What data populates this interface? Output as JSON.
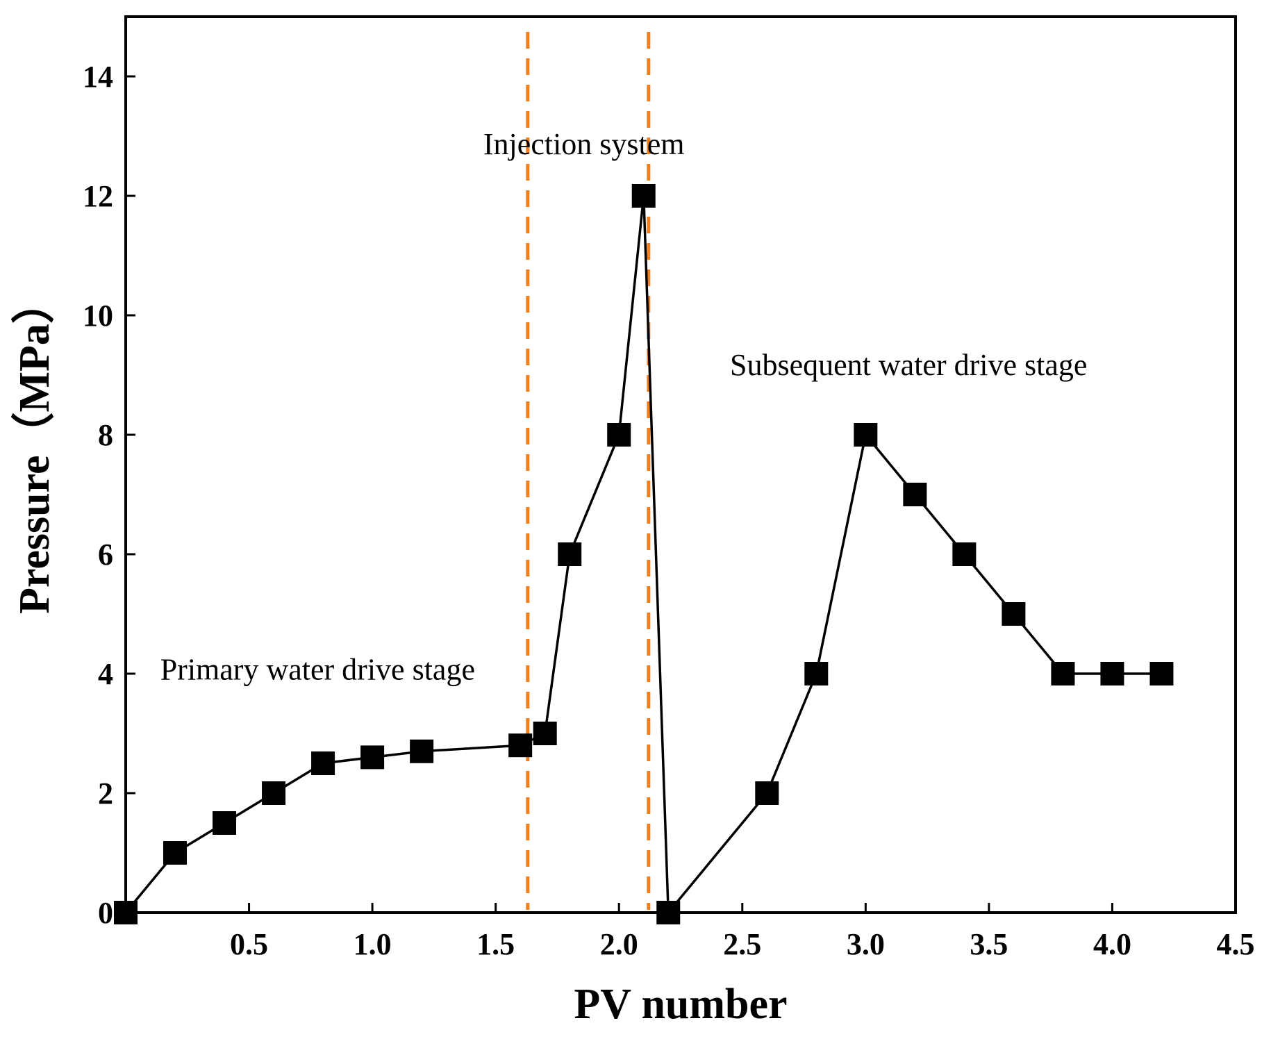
{
  "chart_data": {
    "type": "line",
    "title": "",
    "xlabel": "PV number",
    "ylabel": "Pressure（MPa）",
    "xlim": [
      0,
      4.5
    ],
    "ylim": [
      0,
      15
    ],
    "xticks": [
      0.5,
      1.0,
      1.5,
      2.0,
      2.5,
      3.0,
      3.5,
      4.0,
      4.5
    ],
    "xtick_labels": [
      "0.5",
      "1.0",
      "1.5",
      "2.0",
      "2.5",
      "3.0",
      "3.5",
      "4.0",
      "4.5"
    ],
    "yticks": [
      0,
      2,
      4,
      6,
      8,
      10,
      12,
      14
    ],
    "ytick_labels": [
      "0",
      "2",
      "4",
      "6",
      "8",
      "10",
      "12",
      "14"
    ],
    "grid": false,
    "series": [
      {
        "name": "Pressure",
        "color": "#000000",
        "marker": "square",
        "x": [
          0,
          0.2,
          0.4,
          0.6,
          0.8,
          1.0,
          1.2,
          1.6,
          1.7,
          1.8,
          2.0,
          2.1,
          2.2,
          2.6,
          2.8,
          3.0,
          3.2,
          3.4,
          3.6,
          3.8,
          4.0,
          4.2
        ],
        "y": [
          0,
          1,
          1.5,
          2,
          2.5,
          2.6,
          2.7,
          2.8,
          3,
          6,
          8,
          12,
          0,
          2,
          4,
          8,
          7,
          6,
          5,
          4,
          4,
          4
        ]
      }
    ],
    "reference_lines": [
      {
        "name": "stage-boundary-1",
        "orientation": "vertical",
        "x": 1.63,
        "color": "#f07f1e",
        "style": "dashed"
      },
      {
        "name": "stage-boundary-2",
        "orientation": "vertical",
        "x": 2.12,
        "color": "#f07f1e",
        "style": "dashed"
      }
    ],
    "annotations": [
      {
        "name": "primary-stage",
        "text": "Primary water drive stage",
        "x": 0.14,
        "y": 3.9
      },
      {
        "name": "injection-system",
        "text": "Injection system",
        "x": 1.45,
        "y": 12.7
      },
      {
        "name": "subsequent-stage",
        "text": "Subsequent water drive stage",
        "x": 2.45,
        "y": 9.0
      }
    ]
  }
}
